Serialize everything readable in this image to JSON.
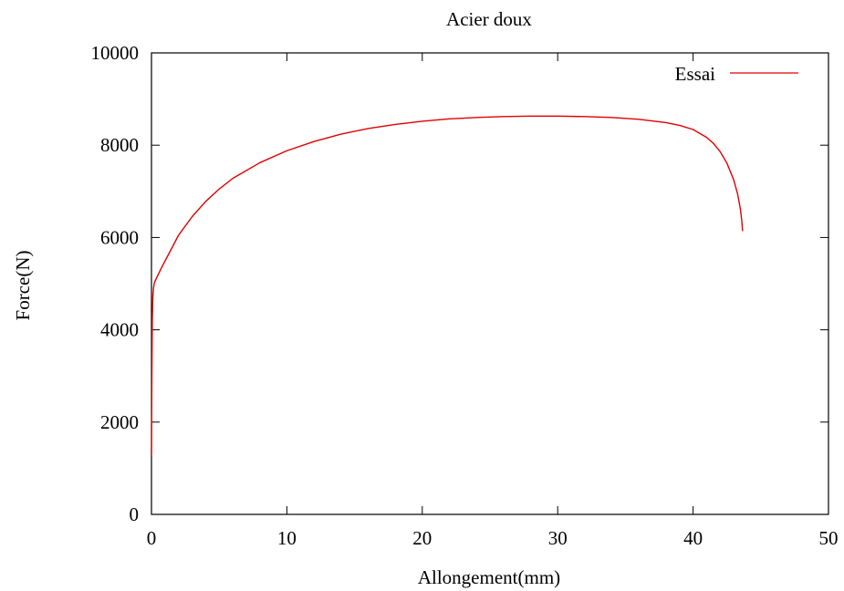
{
  "chart_data": {
    "type": "line",
    "title": "Acier doux",
    "xlabel": "Allongement(mm)",
    "ylabel": "Force(N)",
    "xlim": [
      0,
      50
    ],
    "ylim": [
      0,
      10000
    ],
    "xticks": [
      0,
      10,
      20,
      30,
      40,
      50
    ],
    "yticks": [
      0,
      2000,
      4000,
      6000,
      8000,
      10000
    ],
    "xtick_labels": [
      "0",
      "10",
      "20",
      "30",
      "40",
      "50"
    ],
    "ytick_labels": [
      "0",
      "2000",
      "4000",
      "6000",
      "8000",
      "10000"
    ],
    "grid": false,
    "legend_position": "top-right",
    "series": [
      {
        "name": "Essai",
        "color": "#e00000",
        "x": [
          0,
          0.03,
          0.06,
          0.1,
          0.15,
          0.2,
          0.3,
          0.5,
          0.8,
          1.2,
          2,
          3,
          4,
          5,
          6,
          8,
          10,
          12,
          14,
          16,
          18,
          20,
          22,
          24,
          26,
          28,
          30,
          32,
          34,
          36,
          38,
          39,
          40,
          41,
          41.5,
          42,
          42.5,
          43,
          43.3,
          43.5,
          43.6,
          43.65
        ],
        "y": [
          1300,
          3000,
          4200,
          4700,
          4900,
          5000,
          5080,
          5200,
          5380,
          5600,
          6050,
          6450,
          6780,
          7050,
          7280,
          7620,
          7880,
          8080,
          8240,
          8360,
          8450,
          8520,
          8570,
          8600,
          8620,
          8630,
          8630,
          8620,
          8600,
          8560,
          8490,
          8430,
          8340,
          8170,
          8040,
          7860,
          7610,
          7250,
          6930,
          6600,
          6350,
          6150
        ]
      }
    ]
  }
}
